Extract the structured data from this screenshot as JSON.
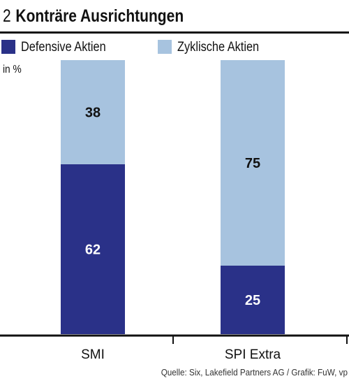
{
  "figure": {
    "number": "2",
    "title": "Konträre Ausrichtungen",
    "unit": "in %",
    "source": "Quelle: Six, Lakefield Partners AG / Grafik: FuW, vp"
  },
  "colors": {
    "defensive": "#2a3188",
    "cyclical": "#a7c3df",
    "axis": "#111111"
  },
  "chart_data": {
    "type": "bar",
    "stacked": true,
    "title": "Konträre Ausrichtungen",
    "ylabel": "in %",
    "ylim": [
      0,
      100
    ],
    "categories": [
      "SMI",
      "SPI Extra"
    ],
    "series": [
      {
        "name": "Defensive Aktien",
        "values": [
          62,
          25
        ]
      },
      {
        "name": "Zyklische Aktien",
        "values": [
          38,
          75
        ]
      }
    ],
    "legend": "top",
    "grid": false
  }
}
